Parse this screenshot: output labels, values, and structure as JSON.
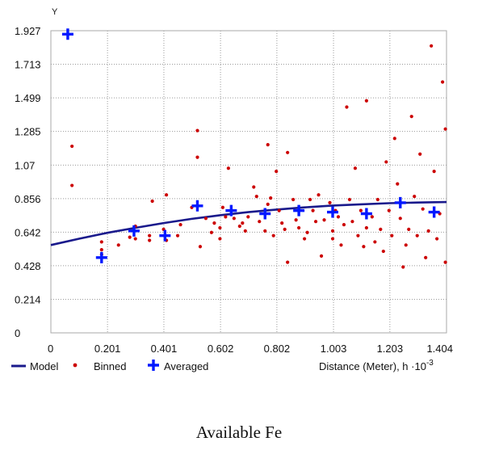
{
  "chart_data": {
    "type": "scatter",
    "title": "",
    "ylabel": "Y",
    "xlabel": "Distance (Meter), h ·10",
    "xlabel_exponent": "-3",
    "xlim": [
      0,
      1.404
    ],
    "ylim": [
      0,
      1.927
    ],
    "x_ticks": [
      "0",
      "0.201",
      "0.401",
      "0.602",
      "0.802",
      "1.003",
      "1.203",
      "1.404"
    ],
    "y_ticks": [
      "0",
      "0.214",
      "0.428",
      "0.642",
      "0.856",
      "1.07",
      "1.285",
      "1.499",
      "1.713",
      "1.927"
    ],
    "grid": true,
    "legend_position": "bottom",
    "series": [
      {
        "name": "Model",
        "type": "line",
        "color": "#1a1a8c",
        "points": [
          [
            0.0,
            0.56
          ],
          [
            0.1,
            0.6
          ],
          [
            0.2,
            0.638
          ],
          [
            0.3,
            0.67
          ],
          [
            0.4,
            0.7
          ],
          [
            0.5,
            0.727
          ],
          [
            0.6,
            0.75
          ],
          [
            0.7,
            0.77
          ],
          [
            0.8,
            0.786
          ],
          [
            0.9,
            0.8
          ],
          [
            1.0,
            0.812
          ],
          [
            1.1,
            0.82
          ],
          [
            1.2,
            0.827
          ],
          [
            1.3,
            0.831
          ],
          [
            1.404,
            0.834
          ]
        ]
      },
      {
        "name": "Binned",
        "type": "scatter",
        "color": "#cc0000",
        "points": [
          [
            0.075,
            1.19
          ],
          [
            0.075,
            0.94
          ],
          [
            0.18,
            0.58
          ],
          [
            0.18,
            0.53
          ],
          [
            0.18,
            0.5
          ],
          [
            0.24,
            0.56
          ],
          [
            0.28,
            0.61
          ],
          [
            0.3,
            0.68
          ],
          [
            0.3,
            0.6
          ],
          [
            0.35,
            0.59
          ],
          [
            0.35,
            0.62
          ],
          [
            0.36,
            0.84
          ],
          [
            0.4,
            0.66
          ],
          [
            0.41,
            0.88
          ],
          [
            0.41,
            0.59
          ],
          [
            0.45,
            0.62
          ],
          [
            0.46,
            0.69
          ],
          [
            0.5,
            0.8
          ],
          [
            0.52,
            1.29
          ],
          [
            0.52,
            1.12
          ],
          [
            0.53,
            0.55
          ],
          [
            0.55,
            0.73
          ],
          [
            0.57,
            0.64
          ],
          [
            0.58,
            0.7
          ],
          [
            0.6,
            0.67
          ],
          [
            0.6,
            0.6
          ],
          [
            0.61,
            0.8
          ],
          [
            0.62,
            0.74
          ],
          [
            0.63,
            1.05
          ],
          [
            0.65,
            0.73
          ],
          [
            0.67,
            0.68
          ],
          [
            0.68,
            0.7
          ],
          [
            0.69,
            0.65
          ],
          [
            0.7,
            0.74
          ],
          [
            0.72,
            0.93
          ],
          [
            0.73,
            0.87
          ],
          [
            0.74,
            0.71
          ],
          [
            0.76,
            0.65
          ],
          [
            0.77,
            1.2
          ],
          [
            0.77,
            0.82
          ],
          [
            0.78,
            0.86
          ],
          [
            0.79,
            0.62
          ],
          [
            0.8,
            1.03
          ],
          [
            0.81,
            0.78
          ],
          [
            0.82,
            0.7
          ],
          [
            0.83,
            0.66
          ],
          [
            0.84,
            1.15
          ],
          [
            0.84,
            0.45
          ],
          [
            0.86,
            0.85
          ],
          [
            0.87,
            0.72
          ],
          [
            0.88,
            0.67
          ],
          [
            0.9,
            0.6
          ],
          [
            0.91,
            0.64
          ],
          [
            0.92,
            0.85
          ],
          [
            0.93,
            0.78
          ],
          [
            0.94,
            0.71
          ],
          [
            0.95,
            0.88
          ],
          [
            0.96,
            0.49
          ],
          [
            0.97,
            0.72
          ],
          [
            0.99,
            0.83
          ],
          [
            1.0,
            0.65
          ],
          [
            1.0,
            0.6
          ],
          [
            1.01,
            0.78
          ],
          [
            1.02,
            0.74
          ],
          [
            1.03,
            0.56
          ],
          [
            1.04,
            0.69
          ],
          [
            1.05,
            1.44
          ],
          [
            1.06,
            0.85
          ],
          [
            1.07,
            0.71
          ],
          [
            1.08,
            1.05
          ],
          [
            1.09,
            0.62
          ],
          [
            1.1,
            0.78
          ],
          [
            1.11,
            0.55
          ],
          [
            1.12,
            1.48
          ],
          [
            1.12,
            0.67
          ],
          [
            1.14,
            0.74
          ],
          [
            1.15,
            0.58
          ],
          [
            1.16,
            0.85
          ],
          [
            1.17,
            0.66
          ],
          [
            1.18,
            0.52
          ],
          [
            1.19,
            1.09
          ],
          [
            1.2,
            0.78
          ],
          [
            1.21,
            0.62
          ],
          [
            1.22,
            1.24
          ],
          [
            1.23,
            0.95
          ],
          [
            1.24,
            0.73
          ],
          [
            1.25,
            0.42
          ],
          [
            1.26,
            0.56
          ],
          [
            1.27,
            0.66
          ],
          [
            1.28,
            1.38
          ],
          [
            1.29,
            0.87
          ],
          [
            1.3,
            0.62
          ],
          [
            1.31,
            1.14
          ],
          [
            1.32,
            0.79
          ],
          [
            1.33,
            0.48
          ],
          [
            1.34,
            0.65
          ],
          [
            1.35,
            1.83
          ],
          [
            1.36,
            1.03
          ],
          [
            1.37,
            0.6
          ],
          [
            1.38,
            0.76
          ],
          [
            1.39,
            1.6
          ],
          [
            1.4,
            1.3
          ],
          [
            1.4,
            0.45
          ]
        ]
      },
      {
        "name": "Averaged",
        "type": "scatter",
        "color": "#0018ff",
        "points": [
          [
            0.06,
            1.905
          ],
          [
            0.18,
            0.48
          ],
          [
            0.295,
            0.65
          ],
          [
            0.405,
            0.62
          ],
          [
            0.52,
            0.81
          ],
          [
            0.64,
            0.78
          ],
          [
            0.76,
            0.76
          ],
          [
            0.88,
            0.78
          ],
          [
            1.0,
            0.77
          ],
          [
            1.12,
            0.76
          ],
          [
            1.24,
            0.83
          ],
          [
            1.36,
            0.77
          ]
        ]
      }
    ]
  },
  "legend": {
    "model_label": "Model",
    "binned_label": "Binned",
    "averaged_label": "Averaged"
  },
  "caption": "Available Fe"
}
